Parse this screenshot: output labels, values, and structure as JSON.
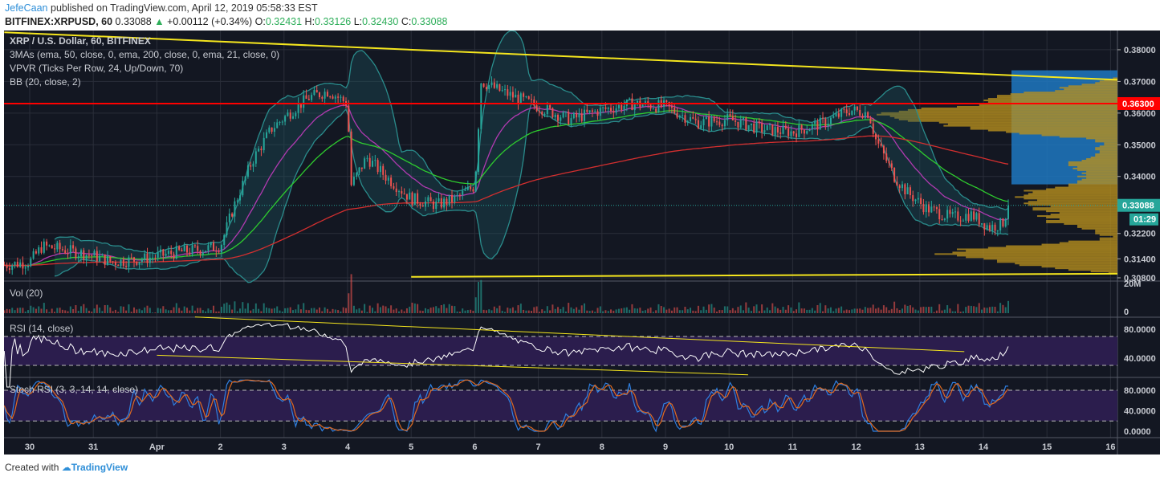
{
  "header": {
    "user": "JefeCaan",
    "published": "published on TradingView.com, April 12, 2019 05:58:33 EST",
    "symbol": "BITFINEX:XRPUSD, 60",
    "last": "0.33088",
    "change": "+0.00112 (+0.34%)",
    "o_label": "O:",
    "o": "0.32431",
    "h_label": "H:",
    "h": "0.33126",
    "l_label": "L:",
    "l": "0.32430",
    "c_label": "C:",
    "c": "0.33088"
  },
  "legend": {
    "title": "XRP / U.S. Dollar, 60, BITFINEX",
    "mas": "3MAs (ema, 50, close, 0, ema, 200, close, 0, ema, 21, close, 0)",
    "vpvr": "VPVR (Ticks Per Row, 24, Up/Down, 70)",
    "bb": "BB (20, close, 2)",
    "vol": "Vol (20)",
    "rsi": "RSI (14, close)",
    "stoch": "Stoch RSI (3, 3, 14, 14, close)"
  },
  "footer": {
    "created": "Created with",
    "brand": "TradingView"
  },
  "colors": {
    "bg": "#131722",
    "up": "#26a69a",
    "down": "#ef5350",
    "yellow": "#f5e61e",
    "red": "#ff0000",
    "ema50": "#2ecc2e",
    "ema200": "#d32f2f",
    "ema21": "#b03ab0",
    "bb": "#2a8c8c",
    "rsi": "#ffffff",
    "k": "#2f7fe0",
    "d": "#e06a20"
  },
  "chart_data": {
    "type": "candlestick",
    "title": "XRP / U.S. Dollar, 60, BITFINEX",
    "x_ticks": [
      "30",
      "31",
      "Apr",
      "2",
      "3",
      "4",
      "5",
      "6",
      "7",
      "8",
      "9",
      "10",
      "11",
      "12",
      "13",
      "14",
      "15",
      "16"
    ],
    "price_ticks": [
      "0.38000",
      "0.37000",
      "0.36000",
      "0.35000",
      "0.34000",
      "0.32200",
      "0.31400",
      "0.30800"
    ],
    "ylim": [
      0.307,
      0.386
    ],
    "price_path_day_close": [
      [
        -0.4,
        0.312
      ],
      [
        0,
        0.313
      ],
      [
        0.2,
        0.318
      ],
      [
        0.5,
        0.317
      ],
      [
        1,
        0.315
      ],
      [
        1.3,
        0.313
      ],
      [
        1.8,
        0.314
      ],
      [
        2.3,
        0.316
      ],
      [
        2.7,
        0.317
      ],
      [
        3.0,
        0.318
      ],
      [
        3.2,
        0.33
      ],
      [
        3.5,
        0.345
      ],
      [
        3.8,
        0.355
      ],
      [
        4.2,
        0.362
      ],
      [
        4.4,
        0.365
      ],
      [
        4.7,
        0.367
      ],
      [
        5.0,
        0.363
      ],
      [
        5.05,
        0.337
      ],
      [
        5.3,
        0.346
      ],
      [
        5.6,
        0.34
      ],
      [
        6.0,
        0.333
      ],
      [
        6.4,
        0.331
      ],
      [
        6.7,
        0.333
      ],
      [
        7.0,
        0.337
      ],
      [
        7.1,
        0.37
      ],
      [
        7.4,
        0.367
      ],
      [
        8,
        0.362
      ],
      [
        8.5,
        0.358
      ],
      [
        9,
        0.361
      ],
      [
        9.5,
        0.363
      ],
      [
        10,
        0.362
      ],
      [
        10.5,
        0.357
      ],
      [
        11,
        0.358
      ],
      [
        11.5,
        0.355
      ],
      [
        12,
        0.354
      ],
      [
        12.5,
        0.357
      ],
      [
        12.9,
        0.361
      ],
      [
        13.2,
        0.36
      ],
      [
        13.3,
        0.352
      ],
      [
        13.6,
        0.34
      ],
      [
        13.8,
        0.335
      ],
      [
        14.1,
        0.33
      ],
      [
        14.5,
        0.327
      ],
      [
        14.8,
        0.328
      ],
      [
        15.1,
        0.324
      ],
      [
        15.3,
        0.325
      ],
      [
        15.4,
        0.3309
      ]
    ],
    "resistance_level": {
      "price": 0.363,
      "label": "0.36300"
    },
    "last_price": {
      "label": "0.33088",
      "value": 0.33088,
      "countdown": "01:29"
    },
    "trendlines": [
      {
        "from": [
          -0.4,
          0.3855
        ],
        "to": [
          17.3,
          0.3705
        ]
      },
      {
        "from": [
          6.0,
          0.3083
        ],
        "to": [
          17.3,
          0.3093
        ]
      }
    ],
    "volume": {
      "ticks": [
        "20M",
        "0"
      ],
      "max": 20
    },
    "rsi": {
      "ticks": [
        "80.0000",
        "40.0000"
      ],
      "upper": 70,
      "lower": 30,
      "trendlines": [
        {
          "from": [
            2.6,
            97
          ],
          "to": [
            14.7,
            49
          ]
        },
        {
          "from": [
            2.0,
            44
          ],
          "to": [
            11.3,
            17
          ]
        }
      ]
    },
    "stoch_rsi": {
      "ticks": [
        "80.0000",
        "40.0000",
        "0.0000"
      ],
      "upper": 80,
      "lower": 20
    }
  }
}
